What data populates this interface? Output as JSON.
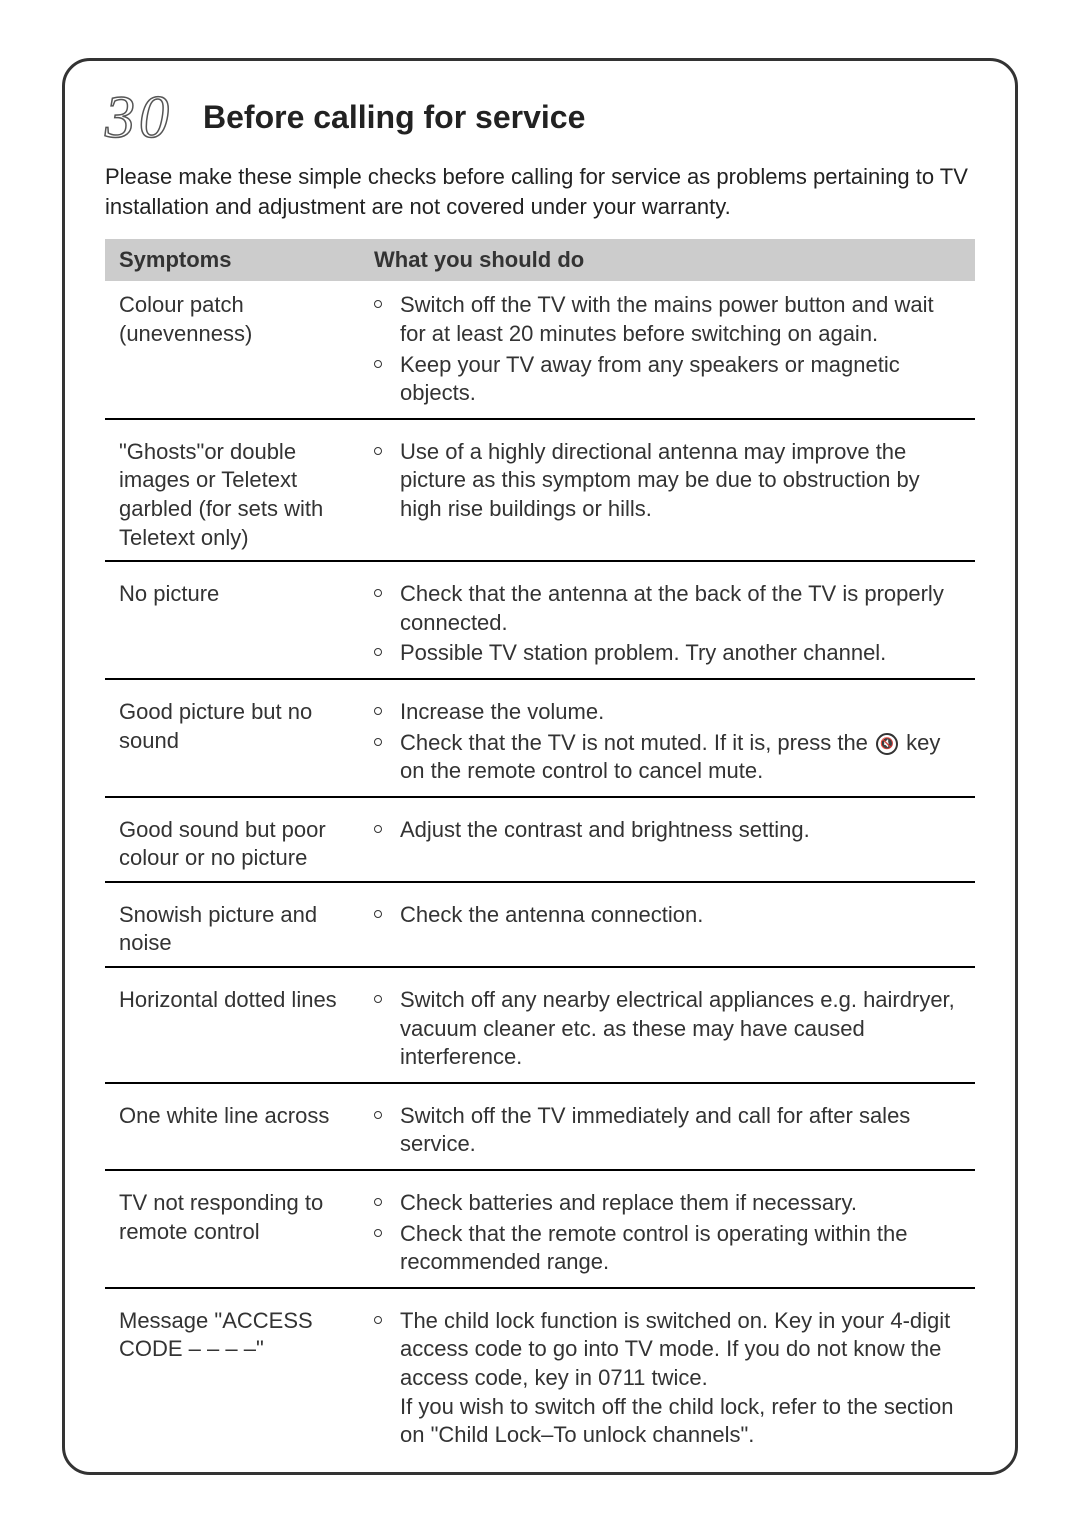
{
  "page": {
    "section_number": "30",
    "title": "Before calling for service",
    "intro": "Please make these simple checks before calling for service as problems pertaining to TV installation and adjustment are not covered under your warranty."
  },
  "table": {
    "header_symptoms": "Symptoms",
    "header_actions": "What you should do",
    "rows": [
      {
        "symptom": "Colour patch (unevenness)",
        "actions": [
          "Switch off the TV with the mains power button and wait for at least 20 minutes before switching on again.",
          "Keep your TV away from any speakers or magnetic objects."
        ]
      },
      {
        "symptom": "\"Ghosts\"or double images or Teletext garbled (for sets with Teletext only)",
        "actions": [
          "Use of a highly directional antenna may improve the picture as this symptom may be due to obstruction by high rise buildings or hills."
        ]
      },
      {
        "symptom": "No picture",
        "actions": [
          "Check that the antenna at the back of the TV is properly connected.",
          "Possible TV station problem.  Try another channel."
        ]
      },
      {
        "symptom": "Good picture but no sound",
        "actions": [
          "Increase the volume.",
          "__MUTE__"
        ]
      },
      {
        "symptom": "Good sound but poor colour or no picture",
        "actions": [
          "Adjust the contrast and brightness setting."
        ]
      },
      {
        "symptom": "Snowish picture and noise",
        "actions": [
          "Check the antenna connection."
        ]
      },
      {
        "symptom": "Horizontal dotted lines",
        "actions": [
          "Switch off any nearby electrical appliances e.g. hairdryer, vacuum cleaner etc. as these may have caused interference."
        ]
      },
      {
        "symptom": "One white line across",
        "actions": [
          "Switch off the TV immediately and call for after sales service."
        ]
      },
      {
        "symptom": "TV not responding to remote control",
        "actions": [
          "Check batteries and replace them if necessary.",
          "Check that the remote control is operating within the recommended range."
        ]
      },
      {
        "symptom": "Message \"ACCESS CODE – – – –\"",
        "actions": [
          "__CHILDLOCK__"
        ]
      }
    ]
  },
  "special": {
    "mute_pre": "Check that the TV is not muted.  If it is, press the ",
    "mute_post": " key on the remote control to cancel mute.",
    "childlock_main": "The child lock function is switched on. Key in your 4-digit access code to go into TV mode. If you do not know the access code, key in 0711 twice.",
    "childlock_cont": "If you wish to switch off the child lock, refer to the section on \"Child Lock–To unlock channels\"."
  },
  "style": {
    "header_bg": "#cccccc",
    "border_color": "#000000",
    "text_color": "#222222",
    "body_fontsize": 22,
    "title_fontsize": 32
  }
}
